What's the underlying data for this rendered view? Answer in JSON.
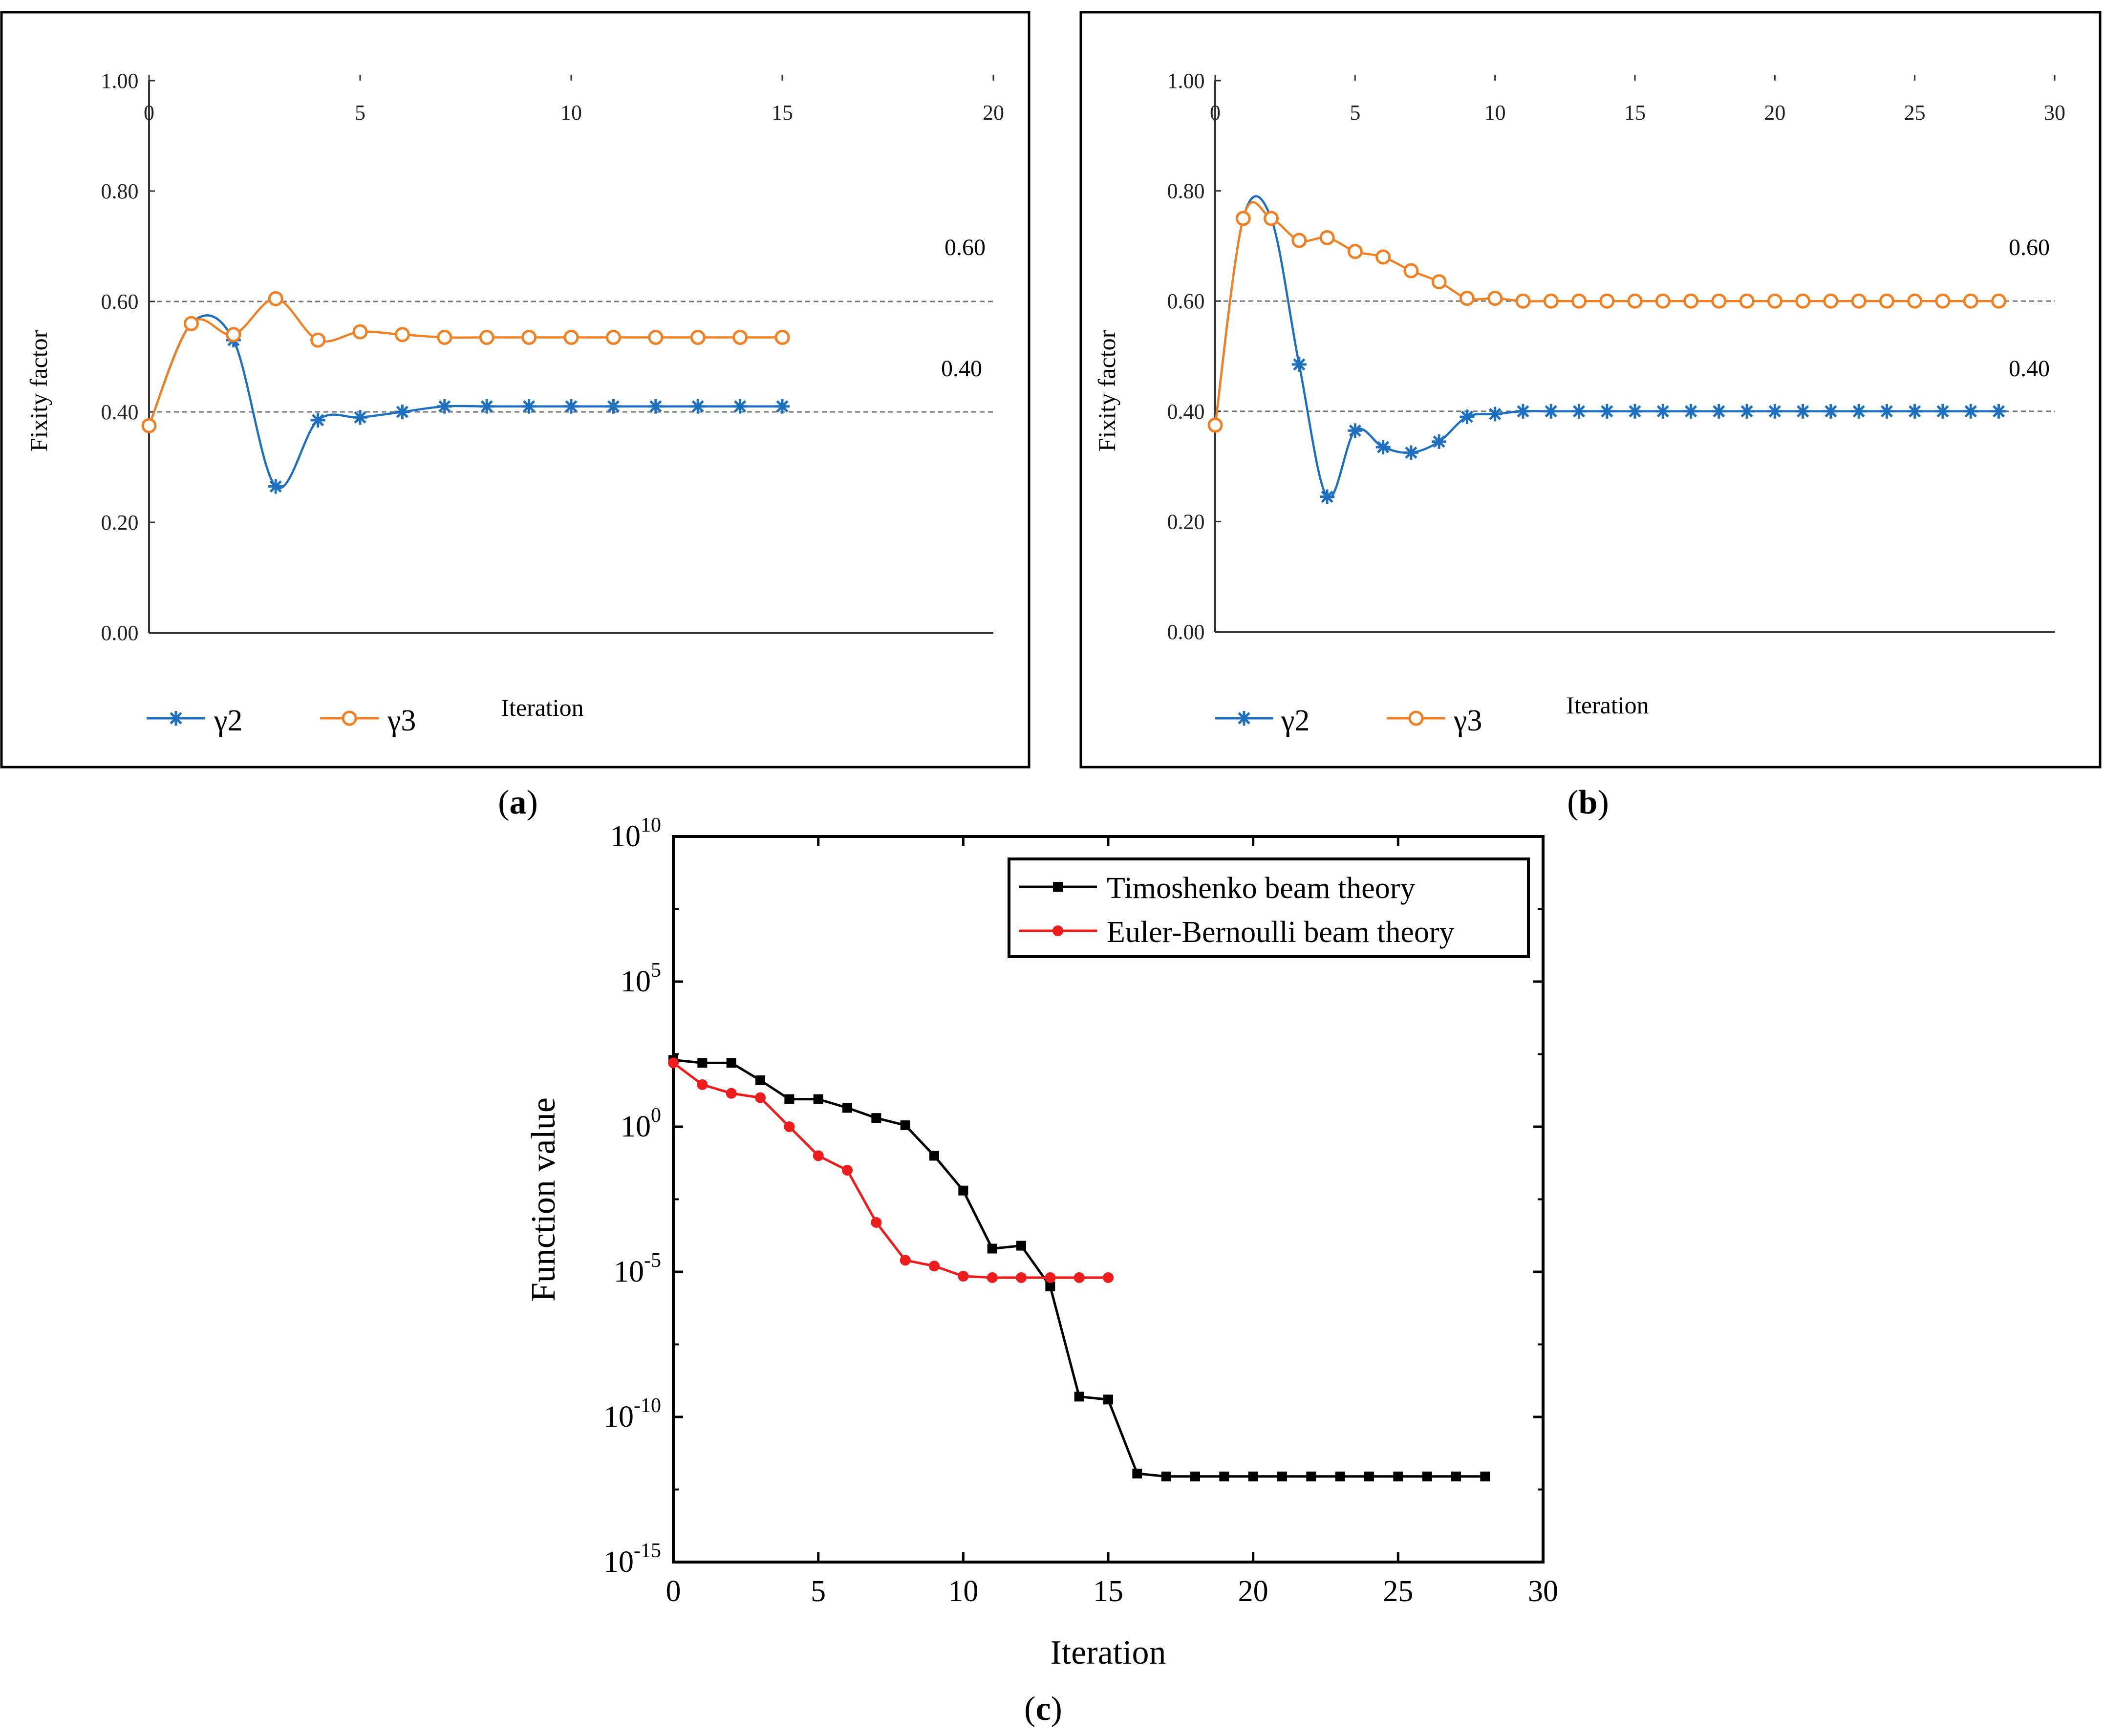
{
  "chart_data": [
    {
      "type": "line",
      "panel": "a",
      "caption_label": "a",
      "xlabel": "Iteration",
      "ylabel": "Fixity factor",
      "xlim": [
        0,
        20
      ],
      "ylim": [
        0,
        1
      ],
      "xticks": [
        "0",
        "5",
        "10",
        "15",
        "20"
      ],
      "yticks": [
        "0.00",
        "0.20",
        "0.40",
        "0.60",
        "0.80",
        "1.00"
      ],
      "reference_lines": [
        {
          "value": 0.6,
          "label": "0.60"
        },
        {
          "value": 0.4,
          "label": "0.40"
        }
      ],
      "legend": [
        "γ2",
        "γ3"
      ],
      "series": [
        {
          "name": "γ2",
          "color": "#1f6fbf",
          "marker": "star",
          "x": [
            0,
            1,
            2,
            3,
            4,
            5,
            6,
            7,
            8,
            9,
            10,
            11,
            12,
            13,
            14,
            15
          ],
          "y": [
            0.375,
            0.56,
            0.53,
            0.265,
            0.385,
            0.39,
            0.4,
            0.41,
            0.41,
            0.41,
            0.41,
            0.41,
            0.41,
            0.41,
            0.41,
            0.41
          ]
        },
        {
          "name": "γ3",
          "color": "#f08024",
          "marker": "circle",
          "x": [
            0,
            1,
            2,
            3,
            4,
            5,
            6,
            7,
            8,
            9,
            10,
            11,
            12,
            13,
            14,
            15
          ],
          "y": [
            0.375,
            0.56,
            0.54,
            0.605,
            0.53,
            0.545,
            0.54,
            0.535,
            0.535,
            0.535,
            0.535,
            0.535,
            0.535,
            0.535,
            0.535,
            0.535
          ]
        }
      ]
    },
    {
      "type": "line",
      "panel": "b",
      "caption_label": "b",
      "xlabel": "Iteration",
      "ylabel": "Fixity factor",
      "xlim": [
        0,
        30
      ],
      "ylim": [
        0,
        1
      ],
      "xticks": [
        "0",
        "5",
        "10",
        "15",
        "20",
        "25",
        "30"
      ],
      "yticks": [
        "0.00",
        "0.20",
        "0.40",
        "0.60",
        "0.80",
        "1.00"
      ],
      "reference_lines": [
        {
          "value": 0.6,
          "label": "0.60"
        },
        {
          "value": 0.4,
          "label": "0.40"
        }
      ],
      "legend": [
        "γ2",
        "γ3"
      ],
      "series": [
        {
          "name": "γ2",
          "color": "#1f6fbf",
          "marker": "star",
          "x": [
            0,
            1,
            2,
            3,
            4,
            5,
            6,
            7,
            8,
            9,
            10,
            11,
            12,
            13,
            14,
            15,
            16,
            17,
            18,
            19,
            20,
            21,
            22,
            23,
            24,
            25,
            26,
            27,
            28
          ],
          "y": [
            0.375,
            0.75,
            0.75,
            0.485,
            0.245,
            0.365,
            0.335,
            0.325,
            0.345,
            0.39,
            0.395,
            0.4,
            0.4,
            0.4,
            0.4,
            0.4,
            0.4,
            0.4,
            0.4,
            0.4,
            0.4,
            0.4,
            0.4,
            0.4,
            0.4,
            0.4,
            0.4,
            0.4,
            0.4
          ]
        },
        {
          "name": "γ3",
          "color": "#f08024",
          "marker": "circle",
          "x": [
            0,
            1,
            2,
            3,
            4,
            5,
            6,
            7,
            8,
            9,
            10,
            11,
            12,
            13,
            14,
            15,
            16,
            17,
            18,
            19,
            20,
            21,
            22,
            23,
            24,
            25,
            26,
            27,
            28
          ],
          "y": [
            0.375,
            0.75,
            0.75,
            0.71,
            0.715,
            0.69,
            0.68,
            0.655,
            0.635,
            0.605,
            0.605,
            0.6,
            0.6,
            0.6,
            0.6,
            0.6,
            0.6,
            0.6,
            0.6,
            0.6,
            0.6,
            0.6,
            0.6,
            0.6,
            0.6,
            0.6,
            0.6,
            0.6,
            0.6
          ]
        }
      ]
    },
    {
      "type": "line",
      "panel": "c",
      "caption_label": "c",
      "xlabel": "Iteration",
      "ylabel": "Function value",
      "yscale": "log",
      "xlim": [
        0,
        30
      ],
      "ylim_exponent": [
        -15,
        10
      ],
      "xticks": [
        "0",
        "5",
        "10",
        "15",
        "20",
        "25",
        "30"
      ],
      "yticks": [
        {
          "base": "10",
          "exp": "10"
        },
        {
          "base": "10",
          "exp": "5"
        },
        {
          "base": "10",
          "exp": "0"
        },
        {
          "base": "10",
          "exp": "-5"
        },
        {
          "base": "10",
          "exp": "-10"
        },
        {
          "base": "10",
          "exp": "-15"
        }
      ],
      "legend": [
        "Timoshenko beam theory",
        "Euler-Bernoulli beam theory"
      ],
      "series": [
        {
          "name": "Timoshenko beam theory",
          "color": "#000000",
          "marker": "square",
          "x": [
            0,
            1,
            2,
            3,
            4,
            5,
            6,
            7,
            8,
            9,
            10,
            11,
            12,
            13,
            14,
            15,
            16,
            17,
            18,
            19,
            20,
            21,
            22,
            23,
            24,
            25,
            26,
            27,
            28
          ],
          "log10_y": [
            2.3,
            2.2,
            2.2,
            1.6,
            0.95,
            0.95,
            0.65,
            0.3,
            0.05,
            -1.0,
            -2.2,
            -4.2,
            -4.1,
            -5.5,
            -9.3,
            -9.4,
            -11.95,
            -12.05,
            -12.05,
            -12.05,
            -12.05,
            -12.05,
            -12.05,
            -12.05,
            -12.05,
            -12.05,
            -12.05,
            -12.05,
            -12.05
          ]
        },
        {
          "name": "Euler-Bernoulli beam theory",
          "color": "#ee1c1c",
          "marker": "circle",
          "x": [
            0,
            1,
            2,
            3,
            4,
            5,
            6,
            7,
            8,
            9,
            10,
            11,
            12,
            13,
            14,
            15
          ],
          "log10_y": [
            2.2,
            1.45,
            1.15,
            1.0,
            0.0,
            -1.0,
            -1.5,
            -3.3,
            -4.6,
            -4.8,
            -5.15,
            -5.2,
            -5.2,
            -5.2,
            -5.2,
            -5.2
          ]
        }
      ]
    }
  ]
}
